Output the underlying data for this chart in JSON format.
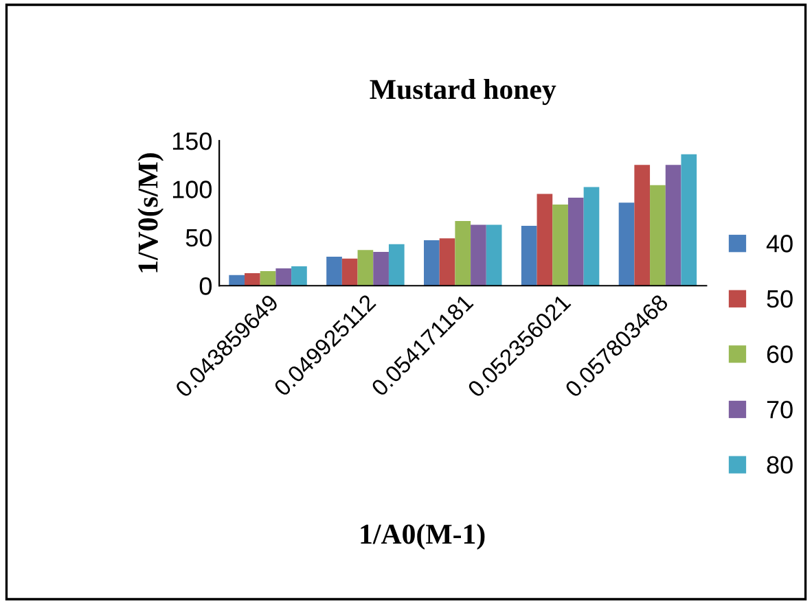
{
  "chart_data": {
    "type": "bar",
    "title": "Mustard honey",
    "xlabel": "1/A0(M-1)",
    "ylabel": "1/V0(s/M)",
    "categories": [
      "0.043859649",
      "0.049925112",
      "0.054171181",
      "0.052356021",
      "0.057803468"
    ],
    "series": [
      {
        "name": "40",
        "color": "#4a7ebb",
        "values": [
          11,
          30,
          47,
          62,
          86
        ]
      },
      {
        "name": "50",
        "color": "#be4b48",
        "values": [
          13,
          28,
          49,
          95,
          125
        ]
      },
      {
        "name": "60",
        "color": "#98b954",
        "values": [
          15,
          37,
          67,
          84,
          104
        ]
      },
      {
        "name": "70",
        "color": "#7d60a0",
        "values": [
          18,
          35,
          63,
          91,
          125
        ]
      },
      {
        "name": "80",
        "color": "#46aac5",
        "values": [
          20,
          43,
          63,
          102,
          136
        ]
      }
    ],
    "ylim": [
      0,
      150
    ],
    "yticks": [
      0,
      50,
      100,
      150
    ],
    "grid": false,
    "legend": "right"
  }
}
